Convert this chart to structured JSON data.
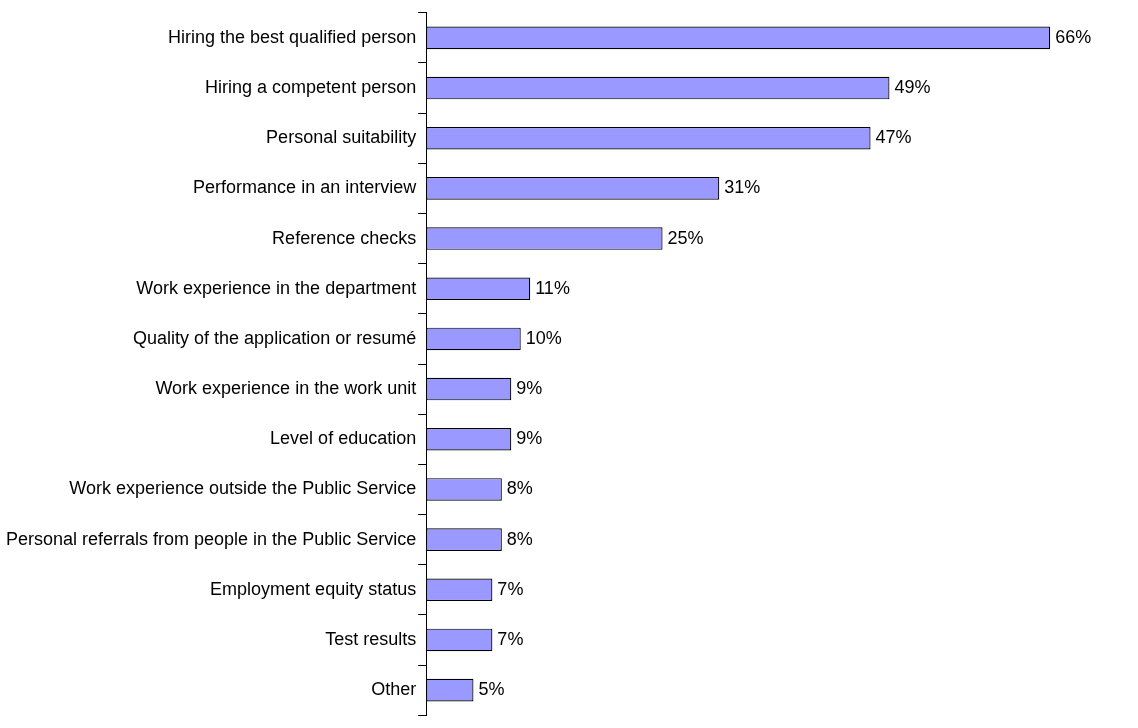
{
  "chart_data": {
    "type": "bar",
    "orientation": "horizontal",
    "categories": [
      "Hiring the best qualified person",
      "Hiring a competent person",
      "Personal suitability",
      "Performance in an interview",
      "Reference checks",
      "Work experience in the department",
      "Quality of the application or resumé",
      "Work experience in the work unit",
      "Level of education",
      "Work experience outside the Public Service",
      "Personal referrals from people in the Public Service",
      "Employment equity status",
      "Test results",
      "Other"
    ],
    "values": [
      66,
      49,
      47,
      31,
      25,
      11,
      10,
      9,
      9,
      8,
      8,
      7,
      7,
      5
    ],
    "value_labels": [
      "66%",
      "49%",
      "47%",
      "31%",
      "25%",
      "11%",
      "10%",
      "9%",
      "9%",
      "8%",
      "8%",
      "7%",
      "7%",
      "5%"
    ],
    "color": "#9999ff",
    "legend": false,
    "tick_labels": "y"
  }
}
